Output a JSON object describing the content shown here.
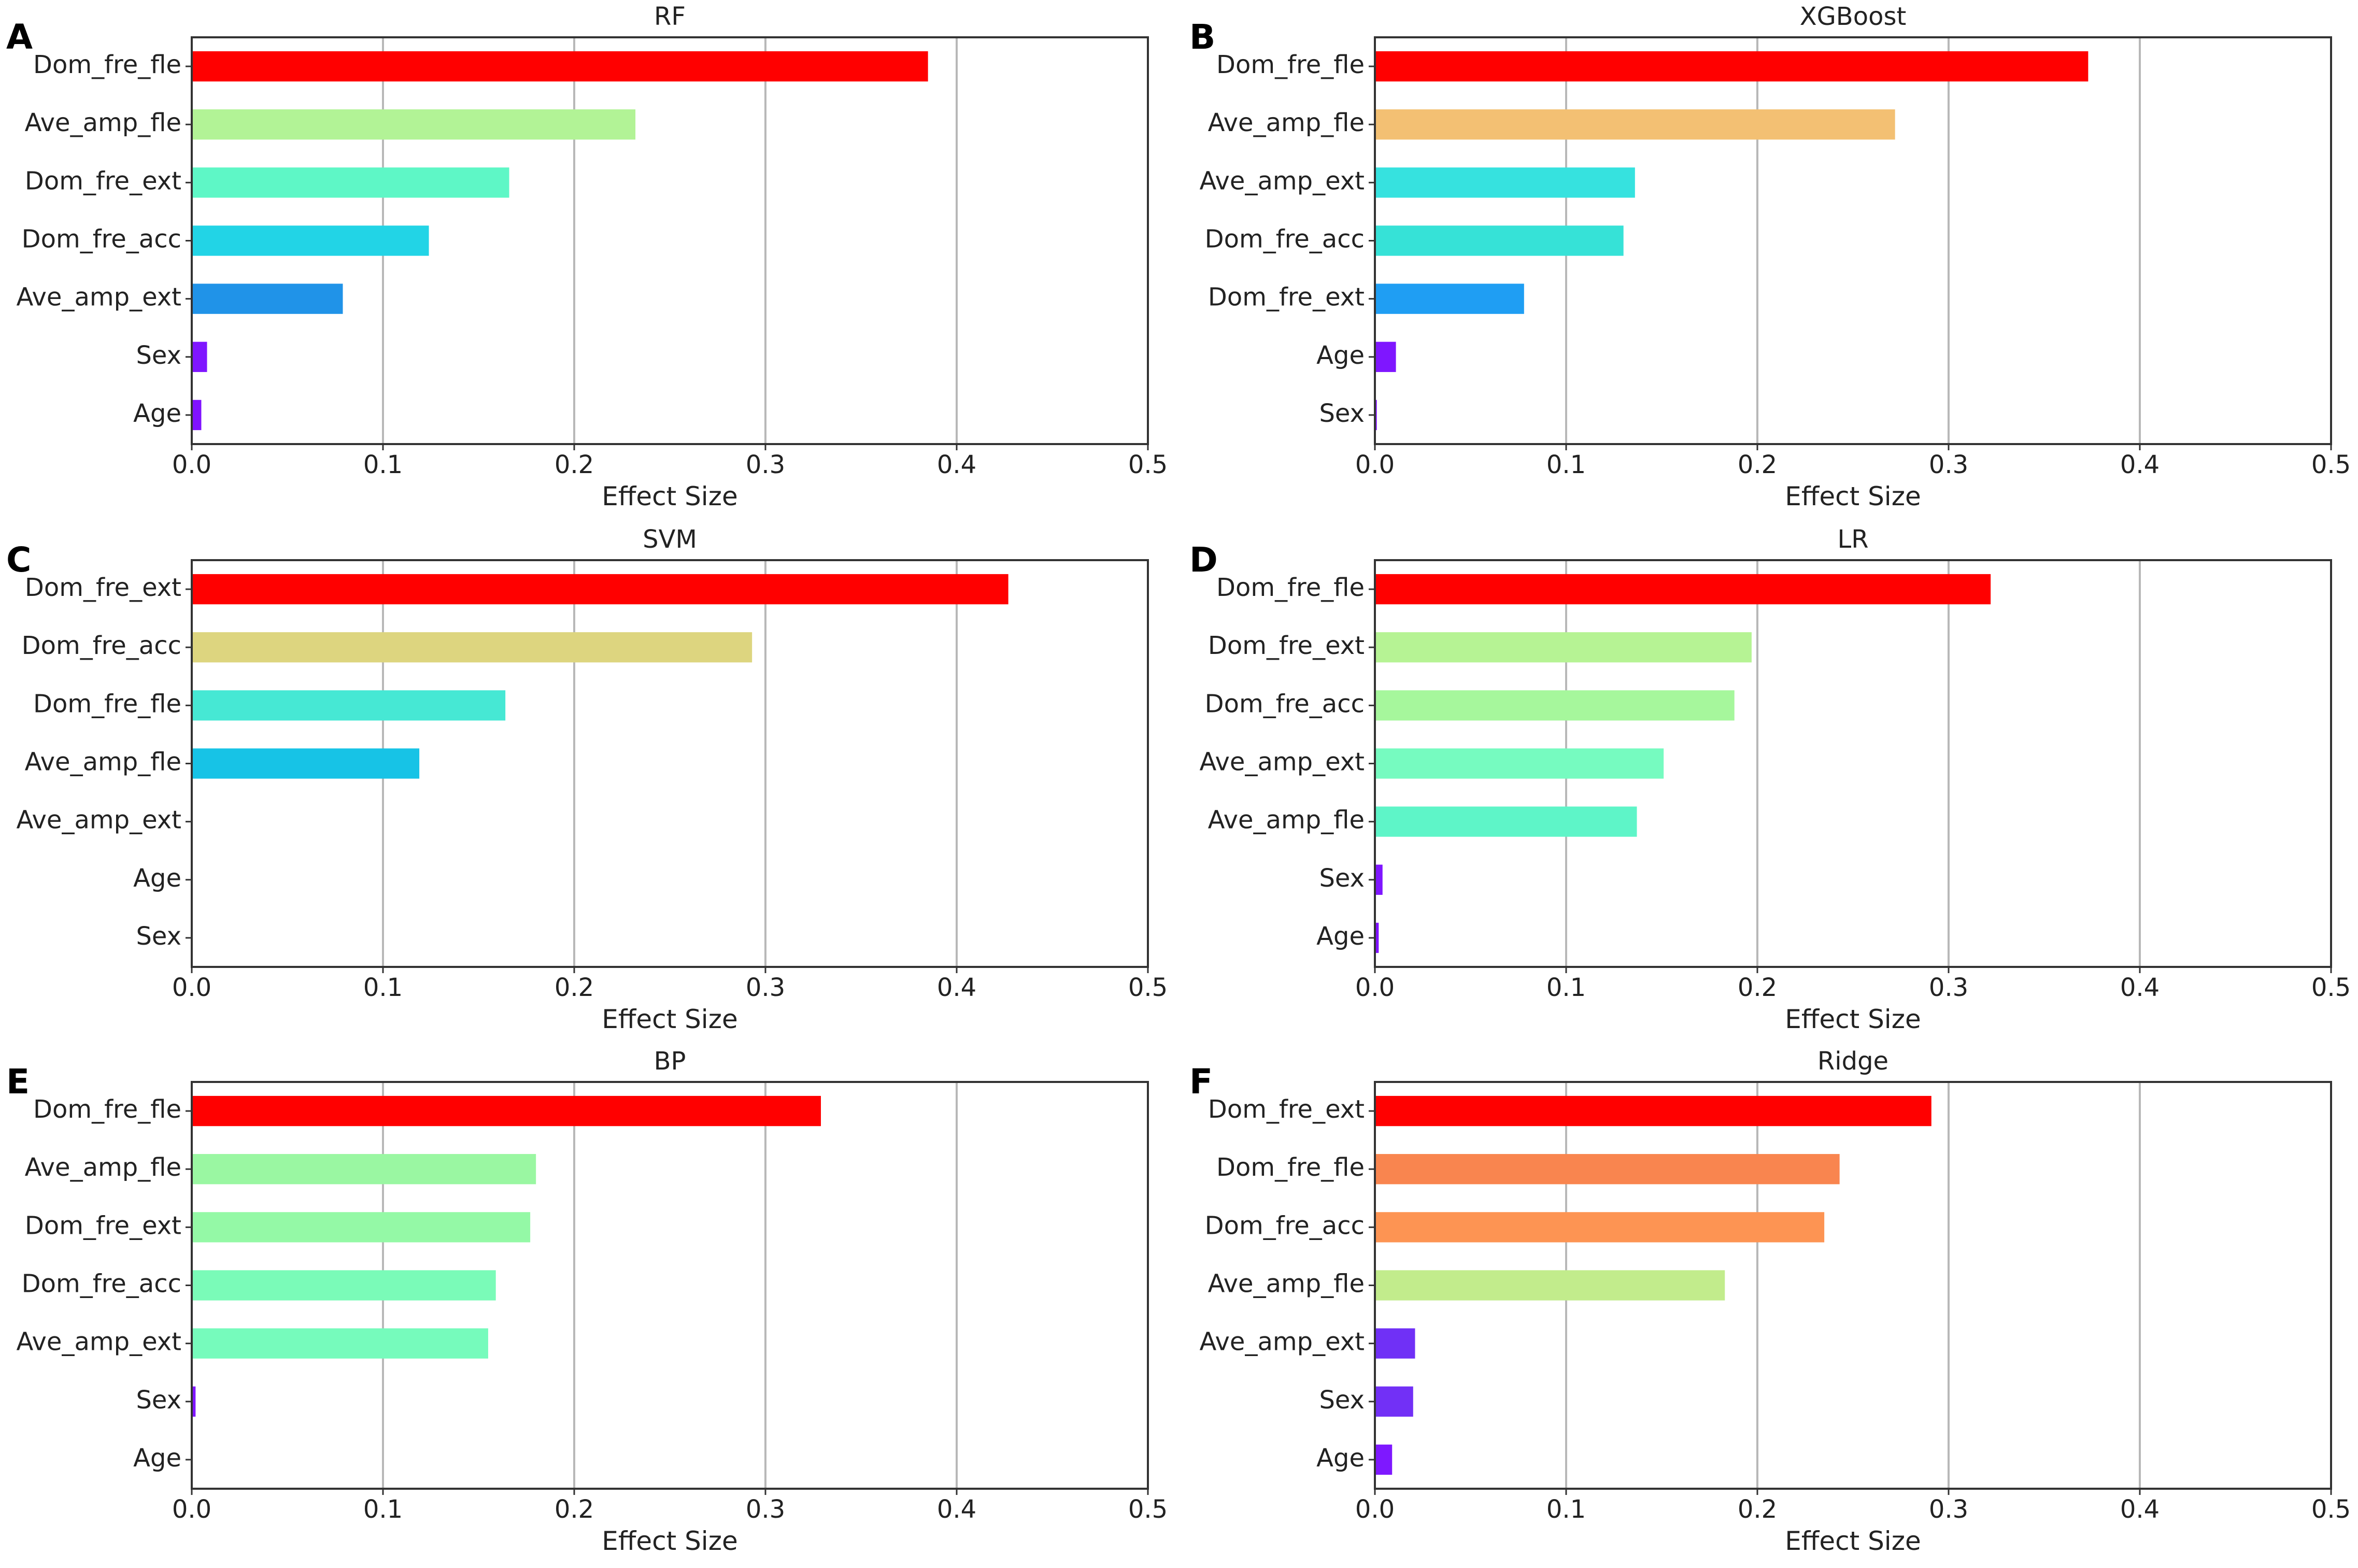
{
  "figure": {
    "xlabel": "Effect Size",
    "ticks": [
      "0.0",
      "0.1",
      "0.2",
      "0.3",
      "0.4",
      "0.5"
    ]
  },
  "chart_data": [
    {
      "panel": "A",
      "title": "RF",
      "type": "bar",
      "orientation": "horizontal",
      "xlabel": "Effect Size",
      "xlim": [
        0,
        0.5
      ],
      "grid": "x",
      "categories": [
        "Dom_fre_fle",
        "Ave_amp_fle",
        "Dom_fre_ext",
        "Dom_fre_acc",
        "Ave_amp_ext",
        "Sex",
        "Age"
      ],
      "values": [
        0.385,
        0.232,
        0.166,
        0.124,
        0.079,
        0.008,
        0.005
      ],
      "colors": [
        "#ff0000",
        "#b2f396",
        "#5ef7c6",
        "#22d4e6",
        "#2093e8",
        "#7f16ff",
        "#8012ff"
      ]
    },
    {
      "panel": "B",
      "title": "XGBoost",
      "type": "bar",
      "orientation": "horizontal",
      "xlabel": "Effect Size",
      "xlim": [
        0,
        0.5
      ],
      "grid": "x",
      "categories": [
        "Dom_fre_fle",
        "Ave_amp_fle",
        "Ave_amp_ext",
        "Dom_fre_acc",
        "Dom_fre_ext",
        "Age",
        "Sex"
      ],
      "values": [
        0.373,
        0.272,
        0.136,
        0.13,
        0.078,
        0.011,
        0.001
      ],
      "colors": [
        "#ff0000",
        "#f3c073",
        "#36e2df",
        "#36e2d7",
        "#1f9ef3",
        "#7f16ff",
        "#8012ff"
      ]
    },
    {
      "panel": "C",
      "title": "SVM",
      "type": "bar",
      "orientation": "horizontal",
      "xlabel": "Effect Size",
      "xlim": [
        0,
        0.5
      ],
      "grid": "x",
      "categories": [
        "Dom_fre_ext",
        "Dom_fre_acc",
        "Dom_fre_fle",
        "Ave_amp_fle",
        "Ave_amp_ext",
        "Age",
        "Sex"
      ],
      "values": [
        0.427,
        0.293,
        0.164,
        0.119,
        0,
        0,
        0
      ],
      "colors": [
        "#ff0000",
        "#ddd57f",
        "#46e8d4",
        "#17c3e6",
        "#17c3e6",
        "#8012ff",
        "#8012ff"
      ]
    },
    {
      "panel": "D",
      "title": "LR",
      "type": "bar",
      "orientation": "horizontal",
      "xlabel": "Effect Size",
      "xlim": [
        0,
        0.5
      ],
      "grid": "x",
      "categories": [
        "Dom_fre_fle",
        "Dom_fre_ext",
        "Dom_fre_acc",
        "Ave_amp_ext",
        "Ave_amp_fle",
        "Sex",
        "Age"
      ],
      "values": [
        0.322,
        0.197,
        0.188,
        0.151,
        0.137,
        0.004,
        0.002
      ],
      "colors": [
        "#ff0000",
        "#b6f394",
        "#a6f79c",
        "#76fbc0",
        "#5ef5c8",
        "#7f16ff",
        "#8012ff"
      ]
    },
    {
      "panel": "E",
      "title": "BP",
      "type": "bar",
      "orientation": "horizontal",
      "xlabel": "Effect Size",
      "xlim": [
        0,
        0.5
      ],
      "grid": "x",
      "categories": [
        "Dom_fre_fle",
        "Ave_amp_fle",
        "Dom_fre_ext",
        "Dom_fre_acc",
        "Ave_amp_ext",
        "Sex",
        "Age"
      ],
      "values": [
        0.329,
        0.18,
        0.177,
        0.159,
        0.155,
        0.002,
        0
      ],
      "colors": [
        "#ff0000",
        "#9af7a2",
        "#94f9a6",
        "#7afbb8",
        "#76fbbc",
        "#7f16ff",
        "#8012ff"
      ]
    },
    {
      "panel": "F",
      "title": "Ridge",
      "type": "bar",
      "orientation": "horizontal",
      "xlabel": "Effect Size",
      "xlim": [
        0,
        0.5
      ],
      "grid": "x",
      "categories": [
        "Dom_fre_ext",
        "Dom_fre_fle",
        "Dom_fre_acc",
        "Ave_amp_fle",
        "Ave_amp_ext",
        "Sex",
        "Age"
      ],
      "values": [
        0.291,
        0.243,
        0.235,
        0.183,
        0.021,
        0.02,
        0.009
      ],
      "colors": [
        "#ff0000",
        "#f9854f",
        "#fd9453",
        "#c2ec8c",
        "#7030f6",
        "#7230f6",
        "#7e18ff"
      ]
    }
  ]
}
